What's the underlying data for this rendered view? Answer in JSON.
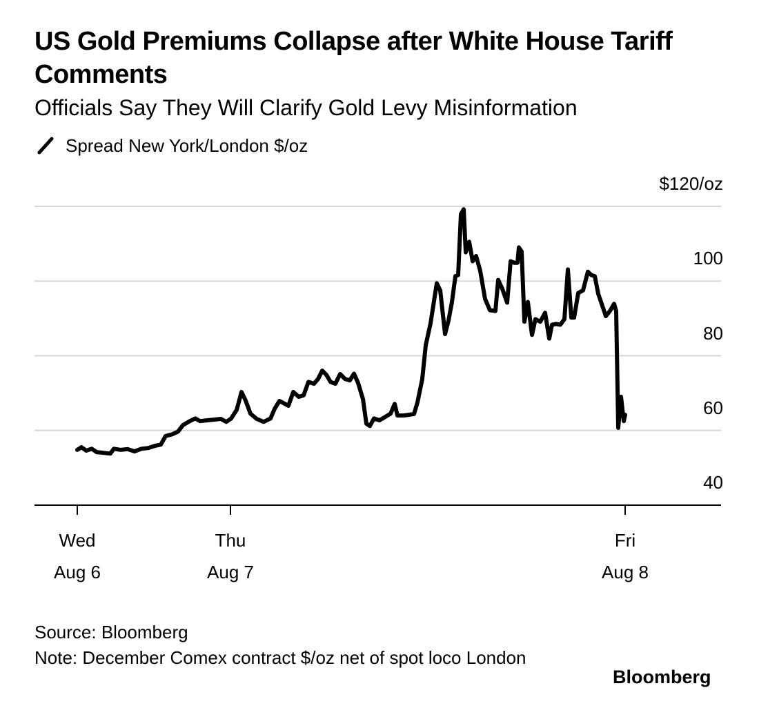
{
  "chart_data": {
    "type": "line",
    "title": "US Gold Premiums Collapse after White House Tariff Comments",
    "subtitle": "Officials Say They Will Clarify Gold Levy Misinformation",
    "source": "Source: Bloomberg",
    "note": "Note: December Comex contract $/oz net of spot loco London",
    "brand": "Bloomberg",
    "x": [
      0,
      6,
      13,
      21,
      28,
      38,
      48,
      53,
      63,
      73,
      83,
      93,
      103,
      113,
      121,
      128,
      138,
      146,
      153,
      163,
      171,
      178,
      188,
      198,
      208,
      216,
      223,
      231,
      238,
      244,
      251,
      260,
      270,
      280,
      286,
      293,
      301,
      306,
      313,
      321,
      328,
      335,
      343,
      349,
      355,
      361,
      367,
      374,
      381,
      388,
      395,
      401,
      407,
      414,
      419,
      424,
      430,
      438,
      446,
      454,
      460,
      464,
      473,
      481,
      488,
      493,
      500,
      505,
      512,
      521,
      526,
      533,
      538,
      543,
      548,
      552,
      556,
      560,
      563,
      568,
      573,
      578,
      584,
      591,
      598,
      606,
      610,
      616,
      623,
      628,
      633,
      638,
      640,
      644,
      648,
      653,
      659,
      664,
      671,
      678,
      684,
      688,
      694,
      700,
      706,
      711,
      716,
      720,
      726,
      733,
      740,
      745,
      750,
      755,
      760,
      766,
      772,
      778,
      781,
      784,
      788,
      792,
      794
    ],
    "series": [
      {
        "name": "Spread New York/London $/oz",
        "color": "#000000",
        "values": [
          54.8,
          55.5,
          54.6,
          55.1,
          54.2,
          54.0,
          53.8,
          55.1,
          54.8,
          55.0,
          54.4,
          55.1,
          55.3,
          55.9,
          56.2,
          58.5,
          59.0,
          59.7,
          61.4,
          62.5,
          63.2,
          62.5,
          62.7,
          62.9,
          63.1,
          62.3,
          63.2,
          65.5,
          70.3,
          68.0,
          64.5,
          63.1,
          62.3,
          63.2,
          65.8,
          67.9,
          67.1,
          66.6,
          70.3,
          69.0,
          69.4,
          73.0,
          72.5,
          73.8,
          76.0,
          74.9,
          73.0,
          72.5,
          75.1,
          73.8,
          73.4,
          75.2,
          72.7,
          68.4,
          61.8,
          61.2,
          63.2,
          62.7,
          63.6,
          64.5,
          67.1,
          64.0,
          64.0,
          64.2,
          64.4,
          67.5,
          73.8,
          82.8,
          88.7,
          99.4,
          97.5,
          85.8,
          89.4,
          94.4,
          101.3,
          101.6,
          117.9,
          119.2,
          107.7,
          110.5,
          105.3,
          106.7,
          102.7,
          95.2,
          92.2,
          92.0,
          100.3,
          97.9,
          94.2,
          105.3,
          104.9,
          104.9,
          109.0,
          107.9,
          89.1,
          94.4,
          85.6,
          89.8,
          89.1,
          91.5,
          84.6,
          88.3,
          88.5,
          88.3,
          89.8,
          103.1,
          90.2,
          90.2,
          96.8,
          97.5,
          102.5,
          101.6,
          101.3,
          96.6,
          93.9,
          90.6,
          92.0,
          93.9,
          92.0,
          60.7,
          69.0,
          62.5,
          64.2
        ]
      }
    ],
    "xlim": [
      -62,
      933
    ],
    "xticks": [
      {
        "value": 0,
        "label": "Wed Aug 6"
      },
      {
        "value": 222,
        "label": "Thu Aug 7"
      },
      {
        "value": 794,
        "label": "Fri Aug 8"
      }
    ],
    "ylim": [
      40,
      120
    ],
    "yticks": [
      40,
      60,
      80,
      100,
      {
        "value": 120,
        "label": "$120/oz"
      }
    ],
    "grid": true
  }
}
